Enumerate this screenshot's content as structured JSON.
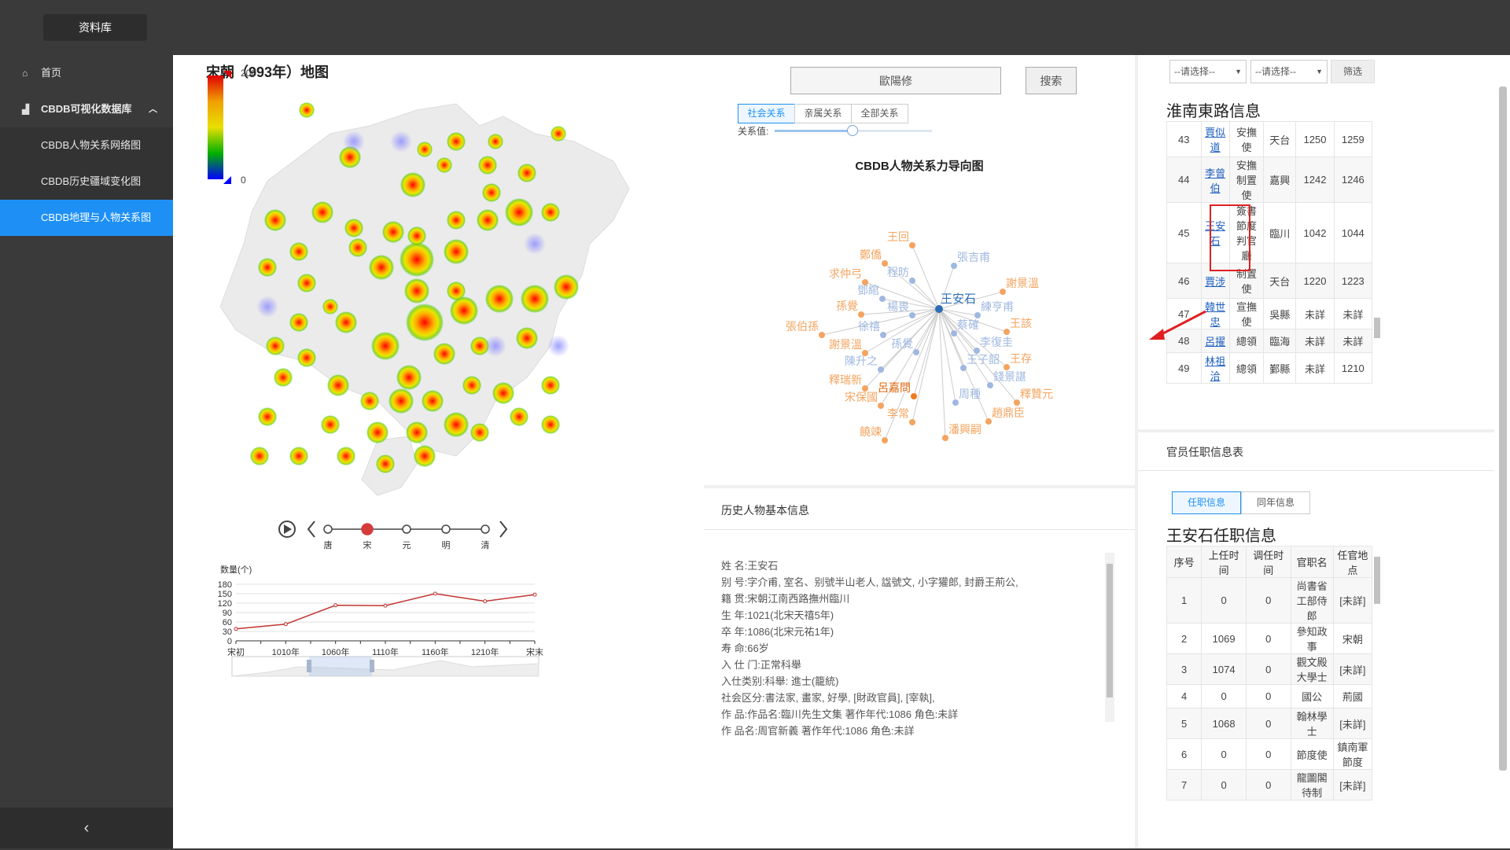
{
  "app": {
    "brand": "资料库"
  },
  "sidebar": {
    "home": "首页",
    "group": "CBDB可视化数据库",
    "items": [
      "CBDB人物关系网络图",
      "CBDB历史疆域变化图",
      "CBDB地理与人物关系图"
    ],
    "collapse": "‹"
  },
  "map": {
    "title": "宋朝（993年）地图",
    "legend_max": "200",
    "legend_min": "0",
    "timeline": [
      "唐",
      "宋",
      "元",
      "明",
      "清"
    ],
    "active_era": "宋"
  },
  "chart_data": {
    "type": "line",
    "ylabel": "数量(个)",
    "categories": [
      "宋初",
      "",
      "1010年",
      "",
      "1060年",
      "",
      "1110年",
      "",
      "1160年",
      "",
      "1210年",
      "",
      "宋末"
    ],
    "x": [
      "宋初",
      "1010年",
      "1060年",
      "1110年",
      "1160年",
      "1210年",
      "宋末"
    ],
    "series": [
      {
        "values": [
          38,
          53,
          113,
          112,
          150,
          126,
          147
        ]
      }
    ],
    "ylim": [
      0,
      180
    ],
    "yticks": [
      0,
      30,
      60,
      90,
      120,
      150,
      180
    ],
    "color": "#c23531"
  },
  "graph": {
    "search_value": "歐陽修",
    "search_button": "搜索",
    "tabs": [
      "社会关系",
      "亲属关系",
      "全部关系"
    ],
    "slider_label": "关系值:",
    "title": "CBDB人物关系力导向图",
    "center": "王安石",
    "nodes": [
      {
        "label": "王回",
        "c": "o"
      },
      {
        "label": "鄭僑",
        "c": "o"
      },
      {
        "label": "張吉甫",
        "c": "b"
      },
      {
        "label": "求仲弓",
        "c": "o"
      },
      {
        "label": "程昉",
        "c": "b"
      },
      {
        "label": "謝景溫",
        "c": "o"
      },
      {
        "label": "鄧綰",
        "c": "b"
      },
      {
        "label": "孫覺",
        "c": "o"
      },
      {
        "label": "楊畏",
        "c": "b"
      },
      {
        "label": "練亨甫",
        "c": "b"
      },
      {
        "label": "張伯孫",
        "c": "o"
      },
      {
        "label": "徐禧",
        "c": "b"
      },
      {
        "label": "蔡確",
        "c": "b"
      },
      {
        "label": "王該",
        "c": "o"
      },
      {
        "label": "謝景溫",
        "c": "o"
      },
      {
        "label": "孫覺",
        "c": "b"
      },
      {
        "label": "李復圭",
        "c": "b"
      },
      {
        "label": "陳升之",
        "c": "b"
      },
      {
        "label": "王子韶",
        "c": "b"
      },
      {
        "label": "王存",
        "c": "o"
      },
      {
        "label": "釋瑞新",
        "c": "o"
      },
      {
        "label": "呂嘉問",
        "c": "r"
      },
      {
        "label": "錢景諶",
        "c": "b"
      },
      {
        "label": "宋保國",
        "c": "o"
      },
      {
        "label": "周種",
        "c": "b"
      },
      {
        "label": "釋贊元",
        "c": "o"
      },
      {
        "label": "李常",
        "c": "o"
      },
      {
        "label": "趙鼎臣",
        "c": "o"
      },
      {
        "label": "潘興嗣",
        "c": "o"
      },
      {
        "label": "饒竦",
        "c": "o"
      }
    ]
  },
  "basic_info": {
    "title": "历史人物基本信息",
    "lines": [
      "姓 名:王安石",
      "别 号:字介甫, 室名、别號半山老人, 諡號文, 小字獾郎, 封爵王荊公,",
      "籍 贯:宋朝江南西路撫州臨川",
      "生 年:1021(北宋天禧5年)",
      "卒 年:1086(北宋元祐1年)",
      "寿 命:66岁",
      "入 仕 门:正常科舉",
      "入仕类别:科舉: 進士(籠統)",
      "社会区分:書法家, 畫家, 好學, [財政官員], [宰執],",
      "作 品:作品名:臨川先生文集 著作年代:1086 角色:未詳",
      "作 品名:周官新義 著作年代:1086 角色:未詳"
    ]
  },
  "filter": {
    "select1": "--请选择--",
    "select2": "--请选择--",
    "button": "筛选"
  },
  "region_table": {
    "title": "淮南東路信息",
    "rows": [
      [
        "43",
        "賈似道",
        "安撫使",
        "天台",
        "1250",
        "1259"
      ],
      [
        "44",
        "李曾伯",
        "安撫制置使",
        "嘉興",
        "1242",
        "1246"
      ],
      [
        "45",
        "王安石",
        "簽書節度判官廳",
        "臨川",
        "1042",
        "1044"
      ],
      [
        "46",
        "賈涉",
        "制置使",
        "天台",
        "1220",
        "1223"
      ],
      [
        "47",
        "韓世忠",
        "宣撫使",
        "吳縣",
        "未詳",
        "未詳"
      ],
      [
        "48",
        "呂擢",
        "總領",
        "臨海",
        "未詳",
        "未詳"
      ],
      [
        "49",
        "林祖洽",
        "總領",
        "鄞縣",
        "未詳",
        "1210"
      ]
    ]
  },
  "office": {
    "header": "官员任职信息表",
    "tabs": [
      "任职信息",
      "同年信息"
    ],
    "title": "王安石任职信息",
    "columns": [
      "序号",
      "上任时间",
      "调任时间",
      "官职名",
      "任官地点"
    ],
    "rows": [
      [
        "1",
        "0",
        "0",
        "尚書省工部侍郎",
        "[未詳]"
      ],
      [
        "2",
        "1069",
        "0",
        "參知政事",
        "宋朝"
      ],
      [
        "3",
        "1074",
        "0",
        "觀文殿大學士",
        "[未詳]"
      ],
      [
        "4",
        "0",
        "0",
        "國公",
        "荊國"
      ],
      [
        "5",
        "1068",
        "0",
        "翰林學士",
        "[未詳]"
      ],
      [
        "6",
        "0",
        "0",
        "節度使",
        "鎮南軍節度"
      ],
      [
        "7",
        "0",
        "0",
        "龍圖閣待制",
        "[未詳]"
      ]
    ]
  }
}
